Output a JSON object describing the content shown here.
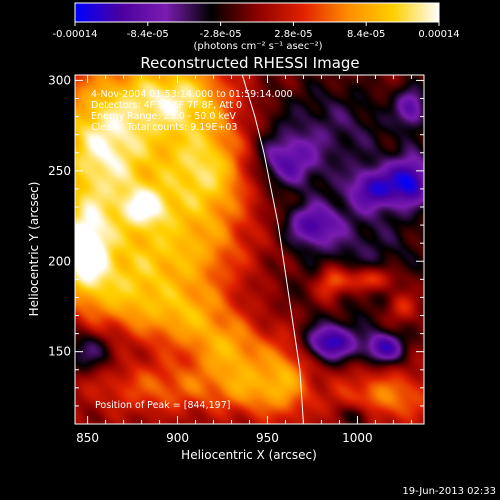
{
  "chart_data": {
    "type": "heatmap",
    "title": "Reconstructed RHESSI Image",
    "xlabel": "Heliocentric X (arcsec)",
    "ylabel": "Heliocentric Y (arcsec)",
    "xlim": [
      843,
      1037
    ],
    "ylim": [
      110,
      303
    ],
    "xticks": [
      850,
      900,
      950,
      1000
    ],
    "yticks": [
      150,
      200,
      250,
      300
    ],
    "colorbar": {
      "range": [
        -0.00014,
        0.00014
      ],
      "ticks": [
        "-0.00014",
        "-8.4e-05",
        "-2.8e-05",
        "2.8e-05",
        "8.4e-05",
        "0.00014"
      ],
      "unit": "(photons cm⁻² s⁻¹ asec⁻²)",
      "stops": [
        "#0000ff",
        "#4b00a0",
        "#7a1cb0",
        "#000000",
        "#8c0000",
        "#e02000",
        "#ff8c00",
        "#ffd000",
        "#ffffff"
      ]
    },
    "annotations": {
      "time": "4-Nov-2004 01:53:14.000 to 01:59:14.000",
      "detectors": "Detectors: 4F 5F 6F 7F 8F, Att 0",
      "energy": "Energy Range: 25.0 - 50.0 keV",
      "clean": "Clean   Total counts: 9.19E+03",
      "peak": "Position of Peak = [844,197]"
    },
    "timestamp": "19-Jun-2013 02:33",
    "limb": [
      [
        936,
        303
      ],
      [
        943,
        280
      ],
      [
        948,
        260
      ],
      [
        952,
        240
      ],
      [
        956,
        220
      ],
      [
        959,
        200
      ],
      [
        962,
        180
      ],
      [
        965,
        160
      ],
      [
        968,
        140
      ],
      [
        970,
        110
      ]
    ],
    "blobs": [
      {
        "x": 860,
        "y": 262,
        "sx": 22,
        "sy": 30,
        "v": 1.0
      },
      {
        "x": 848,
        "y": 205,
        "sx": 10,
        "sy": 18,
        "v": 0.95
      },
      {
        "x": 900,
        "y": 292,
        "sx": 20,
        "sy": 14,
        "v": 0.75
      },
      {
        "x": 915,
        "y": 250,
        "sx": 18,
        "sy": 22,
        "v": 0.85
      },
      {
        "x": 882,
        "y": 230,
        "sx": 10,
        "sy": 8,
        "v": 0.55
      },
      {
        "x": 895,
        "y": 205,
        "sx": 30,
        "sy": 16,
        "v": 0.6
      },
      {
        "x": 870,
        "y": 180,
        "sx": 16,
        "sy": 14,
        "v": 0.5
      },
      {
        "x": 905,
        "y": 170,
        "sx": 18,
        "sy": 14,
        "v": 0.6
      },
      {
        "x": 930,
        "y": 150,
        "sx": 14,
        "sy": 12,
        "v": 0.55
      },
      {
        "x": 895,
        "y": 130,
        "sx": 30,
        "sy": 10,
        "v": 0.4
      },
      {
        "x": 940,
        "y": 128,
        "sx": 12,
        "sy": 10,
        "v": 0.35
      },
      {
        "x": 960,
        "y": 135,
        "sx": 10,
        "sy": 16,
        "v": 0.55
      },
      {
        "x": 1005,
        "y": 190,
        "sx": 12,
        "sy": 5,
        "v": 0.6
      },
      {
        "x": 985,
        "y": 187,
        "sx": 6,
        "sy": 8,
        "v": 0.5
      },
      {
        "x": 1025,
        "y": 175,
        "sx": 6,
        "sy": 6,
        "v": 0.4
      },
      {
        "x": 1015,
        "y": 125,
        "sx": 20,
        "sy": 10,
        "v": 0.5
      },
      {
        "x": 960,
        "y": 255,
        "sx": 12,
        "sy": 10,
        "v": -0.55
      },
      {
        "x": 975,
        "y": 220,
        "sx": 10,
        "sy": 8,
        "v": -0.6
      },
      {
        "x": 1010,
        "y": 240,
        "sx": 10,
        "sy": 8,
        "v": -0.65
      },
      {
        "x": 1030,
        "y": 245,
        "sx": 8,
        "sy": 10,
        "v": -0.8
      },
      {
        "x": 1030,
        "y": 285,
        "sx": 6,
        "sy": 8,
        "v": -0.6
      },
      {
        "x": 985,
        "y": 155,
        "sx": 10,
        "sy": 7,
        "v": -0.85
      },
      {
        "x": 1015,
        "y": 152,
        "sx": 8,
        "sy": 6,
        "v": -0.75
      },
      {
        "x": 1000,
        "y": 115,
        "sx": 6,
        "sy": 5,
        "v": -0.45
      },
      {
        "x": 850,
        "y": 150,
        "sx": 10,
        "sy": 8,
        "v": -0.45
      },
      {
        "x": 985,
        "y": 275,
        "sx": 30,
        "sy": 20,
        "v": -0.35
      },
      {
        "x": 1000,
        "y": 205,
        "sx": 30,
        "sy": 30,
        "v": -0.35
      }
    ]
  }
}
